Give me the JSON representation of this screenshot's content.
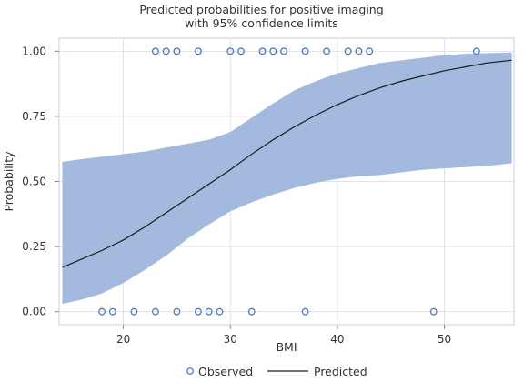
{
  "chart_data": {
    "type": "line",
    "title_line1": "Predicted probabilities for positive imaging",
    "title_line2": "with 95% confidence limits",
    "xlabel": "BMI",
    "ylabel": "Probability",
    "xlim": [
      14,
      56.5
    ],
    "ylim": [
      -0.05,
      1.05
    ],
    "x_ticks": [
      20,
      30,
      40,
      50
    ],
    "x_tick_labels": [
      "20",
      "30",
      "40",
      "50"
    ],
    "y_ticks": [
      0,
      0.25,
      0.5,
      0.75,
      1
    ],
    "y_tick_labels": [
      "0.00",
      "0.25",
      "0.50",
      "0.75",
      "1.00"
    ],
    "grid": true,
    "legend_placement": "bottom",
    "colors": {
      "band": "#a3b9de",
      "line": "#1a1a1a",
      "marker": "#4472c4",
      "grid": "#e3e3e3",
      "frame": "#cfcfcf"
    },
    "series": [
      {
        "name": "Observed",
        "kind": "scatter",
        "points": [
          [
            23,
            1
          ],
          [
            24,
            1
          ],
          [
            25,
            1
          ],
          [
            27,
            1
          ],
          [
            30,
            1
          ],
          [
            31,
            1
          ],
          [
            33,
            1
          ],
          [
            34,
            1
          ],
          [
            35,
            1
          ],
          [
            37,
            1
          ],
          [
            39,
            1
          ],
          [
            41,
            1
          ],
          [
            42,
            1
          ],
          [
            43,
            1
          ],
          [
            53,
            1
          ],
          [
            18,
            0
          ],
          [
            19,
            0
          ],
          [
            21,
            0
          ],
          [
            23,
            0
          ],
          [
            25,
            0
          ],
          [
            27,
            0
          ],
          [
            28,
            0
          ],
          [
            29,
            0
          ],
          [
            32,
            0
          ],
          [
            37,
            0
          ],
          [
            49,
            0
          ]
        ]
      },
      {
        "name": "Predicted",
        "kind": "line",
        "x": [
          14.3,
          16,
          18,
          20,
          22,
          24,
          26,
          28,
          30,
          32,
          34,
          36,
          38,
          40,
          42,
          44,
          46,
          48,
          50,
          52,
          54,
          56.3
        ],
        "y": [
          0.17,
          0.2,
          0.235,
          0.275,
          0.325,
          0.38,
          0.435,
          0.49,
          0.545,
          0.605,
          0.66,
          0.71,
          0.755,
          0.795,
          0.83,
          0.86,
          0.885,
          0.905,
          0.925,
          0.94,
          0.955,
          0.965
        ],
        "lower": [
          0.03,
          0.045,
          0.07,
          0.11,
          0.16,
          0.215,
          0.28,
          0.335,
          0.385,
          0.42,
          0.45,
          0.475,
          0.495,
          0.51,
          0.52,
          0.525,
          0.535,
          0.545,
          0.55,
          0.555,
          0.56,
          0.57
        ],
        "upper": [
          0.575,
          0.585,
          0.595,
          0.605,
          0.615,
          0.63,
          0.645,
          0.66,
          0.69,
          0.745,
          0.8,
          0.85,
          0.885,
          0.915,
          0.935,
          0.955,
          0.965,
          0.975,
          0.985,
          0.99,
          0.993,
          0.995
        ]
      }
    ]
  }
}
